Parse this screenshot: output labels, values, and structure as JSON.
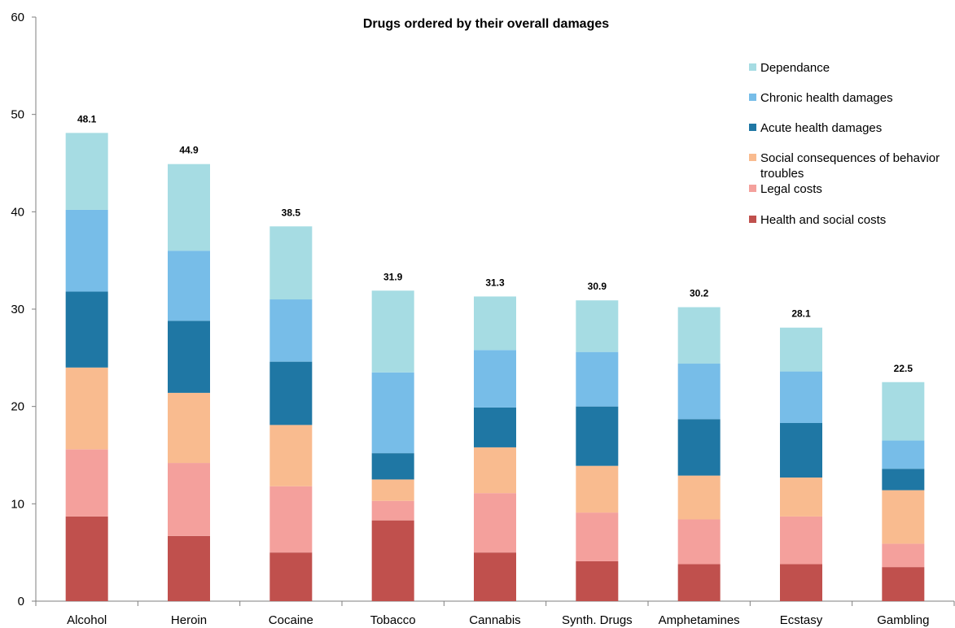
{
  "chart_data": {
    "type": "bar",
    "stacked": true,
    "title": "Drugs ordered by their overall damages",
    "xlabel": "",
    "ylabel": "",
    "ylim": [
      0,
      60
    ],
    "yticks": [
      "0",
      "10",
      "20",
      "30",
      "40",
      "50",
      "60"
    ],
    "grid": false,
    "legend_position": "top-right",
    "categories": [
      "Alcohol",
      "Heroin",
      "Cocaine",
      "Tobacco",
      "Cannabis",
      "Synth. Drugs",
      "Amphetamines",
      "Ecstasy",
      "Gambling"
    ],
    "totals": [
      "48.1",
      "44.9",
      "38.5",
      "31.9",
      "31.3",
      "30.9",
      "30.2",
      "28.1",
      "22.5"
    ],
    "series": [
      {
        "name": "Health and social costs",
        "color": "#c0504d",
        "values": [
          8.7,
          6.7,
          5.0,
          8.3,
          5.0,
          4.1,
          3.8,
          3.8,
          3.5
        ]
      },
      {
        "name": "Legal costs",
        "color": "#f4a09c",
        "values": [
          6.9,
          7.5,
          6.8,
          2.0,
          6.1,
          5.0,
          4.6,
          4.9,
          2.4
        ]
      },
      {
        "name": "Social consequences of behavior troubles",
        "color": "#f9bb8f",
        "values": [
          8.4,
          7.2,
          6.3,
          2.2,
          4.7,
          4.8,
          4.5,
          4.0,
          5.5
        ]
      },
      {
        "name": "Acute health damages",
        "color": "#1f77a4",
        "values": [
          7.8,
          7.4,
          6.5,
          2.7,
          4.1,
          6.1,
          5.8,
          5.6,
          2.2
        ]
      },
      {
        "name": "Chronic health damages",
        "color": "#77bde8",
        "values": [
          8.4,
          7.2,
          6.4,
          8.3,
          5.9,
          5.6,
          5.7,
          5.3,
          2.9
        ]
      },
      {
        "name": "Dependance",
        "color": "#a6dce3",
        "values": [
          7.9,
          8.9,
          7.5,
          8.4,
          5.5,
          5.3,
          5.8,
          4.5,
          6.0
        ]
      }
    ],
    "legend_order": [
      "Dependance",
      "Chronic health damages",
      "Acute health damages",
      "Social consequences of behavior troubles",
      "Legal costs",
      "Health and social costs"
    ]
  }
}
